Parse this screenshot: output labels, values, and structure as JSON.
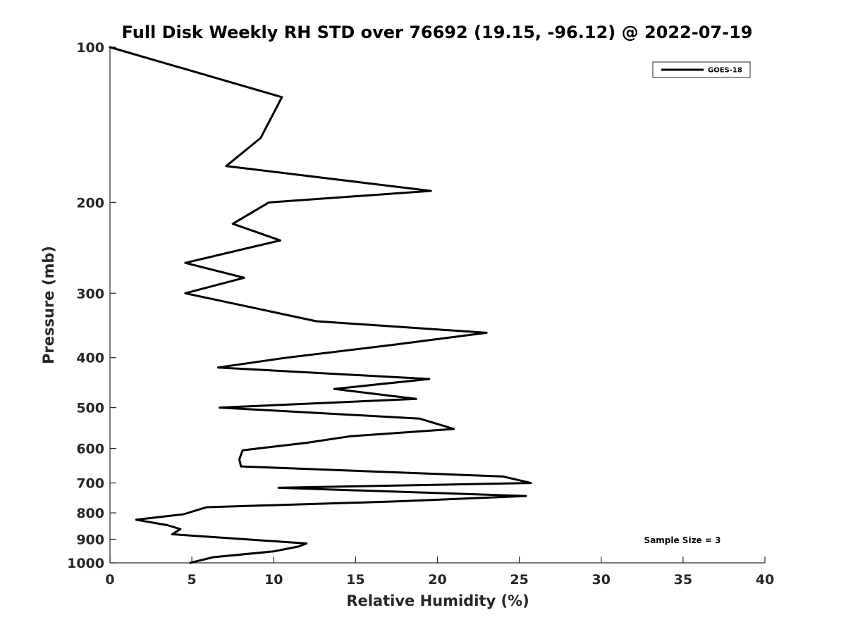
{
  "chart_data": {
    "type": "line",
    "title": "Full Disk Weekly RH STD over 76692 (19.15, -96.12) @ 2022-07-19",
    "xlabel": "Relative Humidity (%)",
    "ylabel": "Pressure (mb)",
    "xlim": [
      0,
      40
    ],
    "ylim": [
      100,
      1000
    ],
    "y_scale": "log",
    "y_reversed": true,
    "x_ticks": [
      0,
      5,
      10,
      15,
      20,
      25,
      30,
      35,
      40
    ],
    "y_ticks": [
      100,
      200,
      300,
      400,
      500,
      600,
      700,
      800,
      900,
      1000
    ],
    "grid": false,
    "legend_position": "top-right",
    "series": [
      {
        "name": "GOES-18",
        "color": "#000000",
        "x": [
          0.0,
          10.5,
          9.2,
          7.1,
          19.6,
          9.7,
          7.5,
          10.4,
          4.6,
          8.2,
          4.6,
          12.6,
          23.0,
          17.5,
          10.8,
          6.6,
          19.5,
          13.7,
          18.7,
          6.7,
          18.9,
          21.0,
          14.7,
          12.0,
          8.1,
          7.9,
          8.0,
          24.0,
          25.7,
          10.3,
          25.4,
          17.5,
          5.9,
          4.5,
          1.6,
          3.5,
          4.3,
          3.8,
          12.0,
          11.5,
          10.0,
          6.3,
          4.9
        ],
        "y": [
          100,
          125,
          150,
          170,
          190,
          200,
          220,
          237,
          262,
          280,
          300,
          340,
          358,
          377,
          400,
          418,
          440,
          460,
          481,
          500,
          525,
          550,
          568,
          585,
          605,
          630,
          650,
          680,
          700,
          715,
          742,
          760,
          780,
          805,
          825,
          845,
          860,
          880,
          917,
          930,
          950,
          975,
          1000
        ]
      }
    ],
    "annotations": [
      "Sample Size = 3"
    ]
  }
}
